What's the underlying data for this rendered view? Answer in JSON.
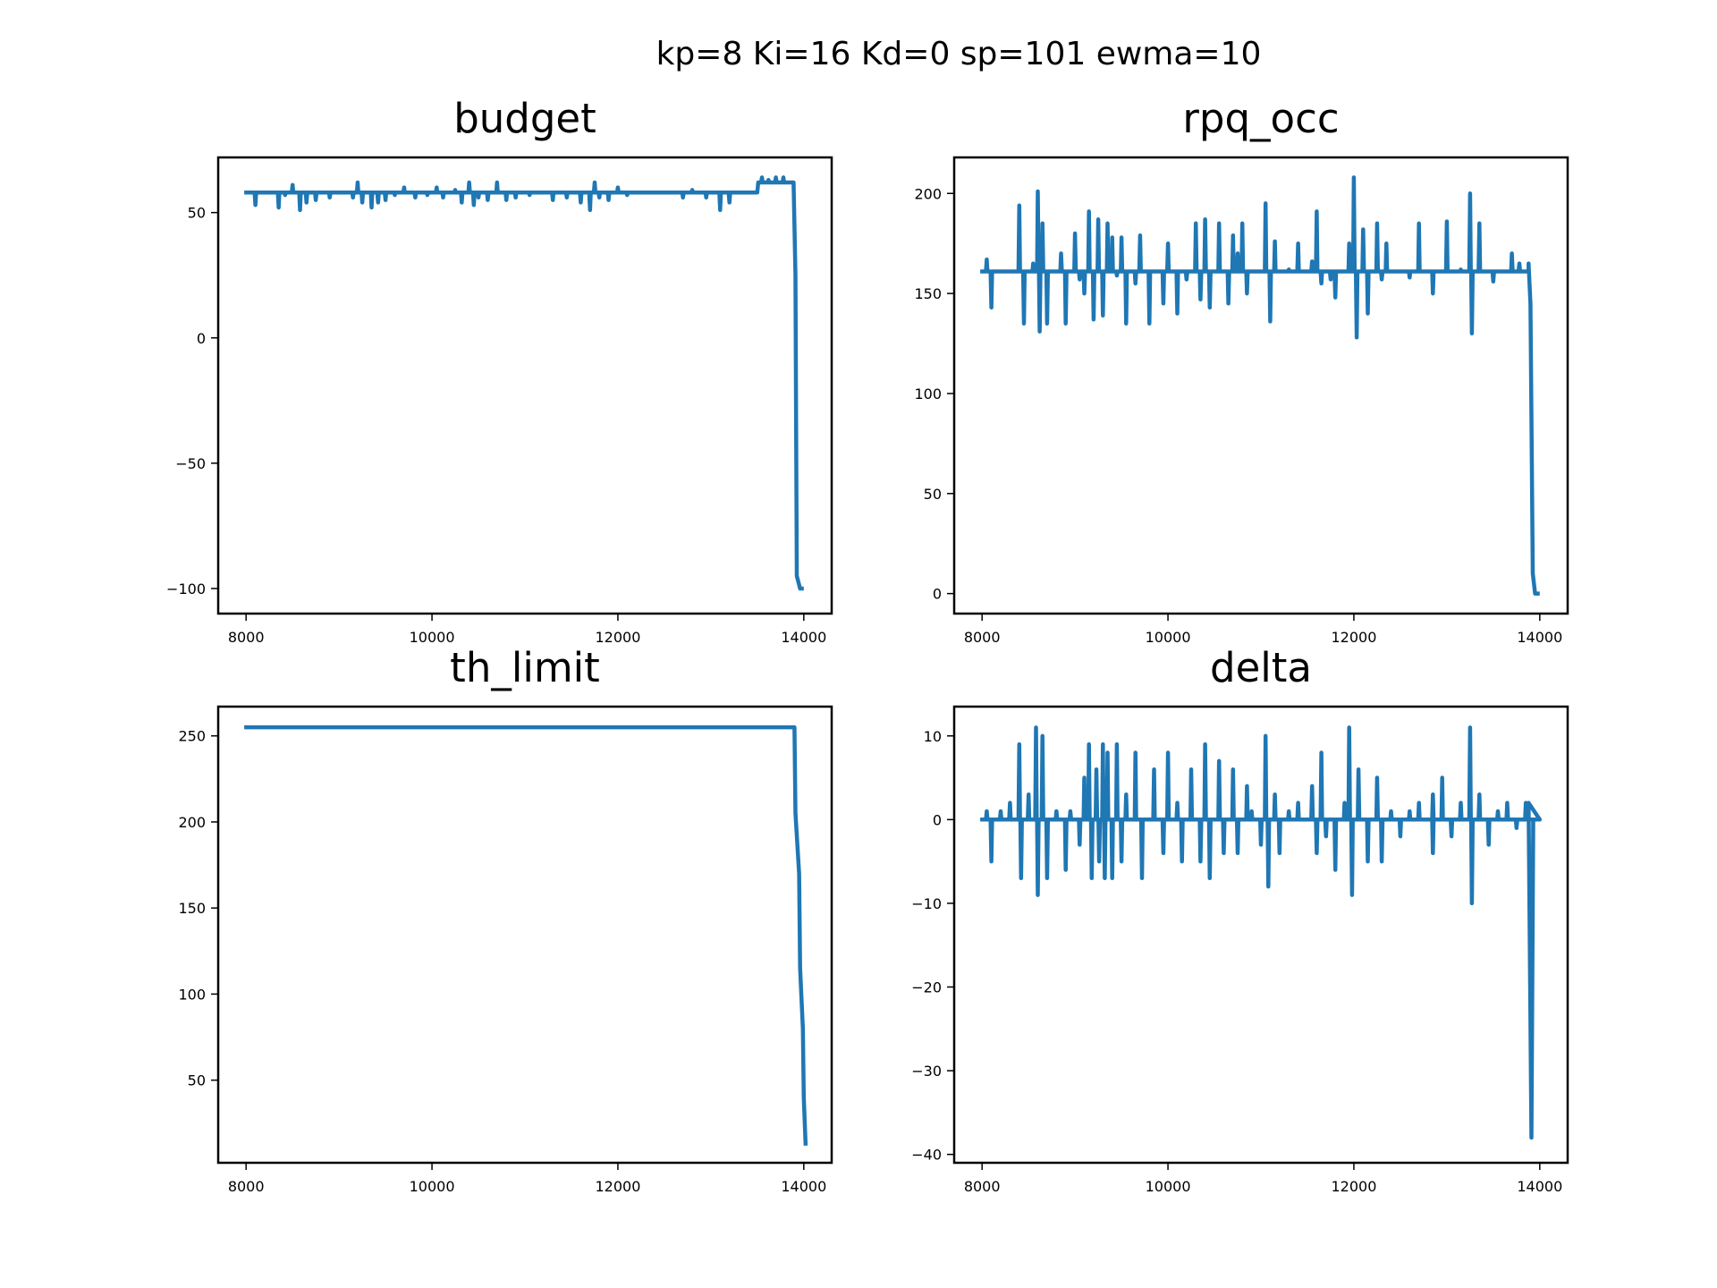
{
  "figure": {
    "suptitle": "kp=8 Ki=16 Kd=0 sp=101 ewma=10"
  },
  "colors": {
    "series": "#1f77b4"
  },
  "chart_data": [
    {
      "id": "budget",
      "type": "line",
      "title": "budget",
      "xlabel": "",
      "ylabel": "",
      "xlim": [
        7700,
        14300
      ],
      "ylim": [
        -110,
        72
      ],
      "xticks": [
        8000,
        10000,
        12000,
        14000
      ],
      "xtick_labels": [
        "8000",
        "10000",
        "12000",
        "14000"
      ],
      "yticks": [
        50,
        0,
        -50,
        -100
      ],
      "ytick_labels": [
        "50",
        "0",
        "−50",
        "−100"
      ],
      "baseline": 58,
      "baseline_end": 13500,
      "spikes": [
        [
          8100,
          53
        ],
        [
          8350,
          52
        ],
        [
          8420,
          57
        ],
        [
          8500,
          61
        ],
        [
          8580,
          51
        ],
        [
          8650,
          54
        ],
        [
          8750,
          55
        ],
        [
          8900,
          56
        ],
        [
          9000,
          58
        ],
        [
          9150,
          56
        ],
        [
          9200,
          62
        ],
        [
          9250,
          54
        ],
        [
          9350,
          52
        ],
        [
          9420,
          54
        ],
        [
          9500,
          55
        ],
        [
          9600,
          57
        ],
        [
          9700,
          60
        ],
        [
          9820,
          56
        ],
        [
          9950,
          57
        ],
        [
          10050,
          60
        ],
        [
          10120,
          56
        ],
        [
          10250,
          59
        ],
        [
          10320,
          54
        ],
        [
          10400,
          62
        ],
        [
          10450,
          53
        ],
        [
          10500,
          56
        ],
        [
          10600,
          55
        ],
        [
          10700,
          62
        ],
        [
          10800,
          55
        ],
        [
          10900,
          56
        ],
        [
          11050,
          57
        ],
        [
          11150,
          58
        ],
        [
          11300,
          55
        ],
        [
          11450,
          56
        ],
        [
          11600,
          54
        ],
        [
          11700,
          51
        ],
        [
          11750,
          62
        ],
        [
          11800,
          56
        ],
        [
          11900,
          55
        ],
        [
          12000,
          60
        ],
        [
          12100,
          57
        ],
        [
          12300,
          58
        ],
        [
          12500,
          58
        ],
        [
          12700,
          56
        ],
        [
          12800,
          59
        ],
        [
          12950,
          56
        ],
        [
          13100,
          51
        ],
        [
          13200,
          54
        ],
        [
          13300,
          58
        ]
      ],
      "plateau": 62,
      "plateau_spikes": [
        [
          13550,
          64
        ],
        [
          13620,
          63
        ],
        [
          13700,
          64
        ],
        [
          13780,
          64
        ]
      ],
      "drop": [
        [
          13890,
          62
        ],
        [
          13910,
          25
        ],
        [
          13925,
          -95
        ],
        [
          13960,
          -100
        ],
        [
          14000,
          -100
        ]
      ]
    },
    {
      "id": "rpq_occ",
      "type": "line",
      "title": "rpq_occ",
      "xlabel": "",
      "ylabel": "",
      "xlim": [
        7700,
        14300
      ],
      "ylim": [
        -10,
        218
      ],
      "xticks": [
        8000,
        10000,
        12000,
        14000
      ],
      "xtick_labels": [
        "8000",
        "10000",
        "12000",
        "14000"
      ],
      "yticks": [
        200,
        150,
        100,
        50,
        0
      ],
      "ytick_labels": [
        "200",
        "150",
        "100",
        "50",
        "0"
      ],
      "baseline": 161,
      "baseline_end": 13880,
      "spikes": [
        [
          8050,
          167
        ],
        [
          8100,
          143
        ],
        [
          8400,
          194
        ],
        [
          8450,
          135
        ],
        [
          8550,
          165
        ],
        [
          8600,
          201
        ],
        [
          8620,
          131
        ],
        [
          8650,
          185
        ],
        [
          8700,
          135
        ],
        [
          8850,
          170
        ],
        [
          8900,
          135
        ],
        [
          9000,
          180
        ],
        [
          9050,
          157
        ],
        [
          9100,
          150
        ],
        [
          9150,
          191
        ],
        [
          9200,
          137
        ],
        [
          9250,
          187
        ],
        [
          9300,
          139
        ],
        [
          9350,
          185
        ],
        [
          9400,
          178
        ],
        [
          9450,
          159
        ],
        [
          9500,
          178
        ],
        [
          9550,
          135
        ],
        [
          9650,
          155
        ],
        [
          9700,
          179
        ],
        [
          9800,
          135
        ],
        [
          9950,
          145
        ],
        [
          10000,
          175
        ],
        [
          10100,
          140
        ],
        [
          10200,
          157
        ],
        [
          10300,
          185
        ],
        [
          10350,
          147
        ],
        [
          10400,
          187
        ],
        [
          10450,
          143
        ],
        [
          10550,
          185
        ],
        [
          10650,
          145
        ],
        [
          10700,
          179
        ],
        [
          10750,
          170
        ],
        [
          10800,
          185
        ],
        [
          10850,
          150
        ],
        [
          11050,
          195
        ],
        [
          11100,
          136
        ],
        [
          11150,
          176
        ],
        [
          11300,
          162
        ],
        [
          11400,
          175
        ],
        [
          11550,
          166
        ],
        [
          11600,
          191
        ],
        [
          11650,
          155
        ],
        [
          11750,
          157
        ],
        [
          11800,
          148
        ],
        [
          11950,
          175
        ],
        [
          12000,
          208
        ],
        [
          12030,
          128
        ],
        [
          12100,
          182
        ],
        [
          12150,
          140
        ],
        [
          12250,
          185
        ],
        [
          12300,
          157
        ],
        [
          12350,
          175
        ],
        [
          12600,
          158
        ],
        [
          12700,
          185
        ],
        [
          12850,
          150
        ],
        [
          13000,
          186
        ],
        [
          13150,
          162
        ],
        [
          13250,
          200
        ],
        [
          13270,
          130
        ],
        [
          13350,
          185
        ],
        [
          13500,
          156
        ],
        [
          13700,
          170
        ],
        [
          13780,
          165
        ]
      ],
      "drop": [
        [
          13880,
          165
        ],
        [
          13900,
          145
        ],
        [
          13925,
          10
        ],
        [
          13950,
          0
        ],
        [
          14000,
          0
        ]
      ]
    },
    {
      "id": "th_limit",
      "type": "line",
      "title": "th_limit",
      "xlabel": "",
      "ylabel": "",
      "xlim": [
        7700,
        14300
      ],
      "ylim": [
        2,
        267
      ],
      "xticks": [
        8000,
        10000,
        12000,
        14000
      ],
      "xtick_labels": [
        "8000",
        "10000",
        "12000",
        "14000"
      ],
      "yticks": [
        250,
        200,
        150,
        100,
        50
      ],
      "ytick_labels": [
        "250",
        "200",
        "150",
        "100",
        "50"
      ],
      "points": [
        [
          7980,
          255
        ],
        [
          13900,
          255
        ],
        [
          13910,
          205
        ],
        [
          13950,
          170
        ],
        [
          13960,
          115
        ],
        [
          13990,
          80
        ],
        [
          14000,
          40
        ],
        [
          14020,
          12
        ]
      ]
    },
    {
      "id": "delta",
      "type": "line",
      "title": "delta",
      "xlabel": "",
      "ylabel": "",
      "xlim": [
        7700,
        14300
      ],
      "ylim": [
        -41,
        13.5
      ],
      "xticks": [
        8000,
        10000,
        12000,
        14000
      ],
      "xtick_labels": [
        "8000",
        "10000",
        "12000",
        "14000"
      ],
      "yticks": [
        10,
        0,
        -10,
        -20,
        -30,
        -40
      ],
      "ytick_labels": [
        "10",
        "0",
        "−10",
        "−20",
        "−30",
        "−40"
      ],
      "baseline": 0,
      "baseline_end": 14000,
      "spikes": [
        [
          8050,
          1
        ],
        [
          8100,
          -5
        ],
        [
          8200,
          1
        ],
        [
          8300,
          2
        ],
        [
          8400,
          9
        ],
        [
          8420,
          -7
        ],
        [
          8500,
          3
        ],
        [
          8580,
          11
        ],
        [
          8600,
          -9
        ],
        [
          8650,
          10
        ],
        [
          8700,
          -7
        ],
        [
          8800,
          1
        ],
        [
          8900,
          -6
        ],
        [
          8950,
          1
        ],
        [
          9050,
          -3
        ],
        [
          9100,
          5
        ],
        [
          9150,
          9
        ],
        [
          9180,
          -7
        ],
        [
          9230,
          6
        ],
        [
          9260,
          -5
        ],
        [
          9300,
          9
        ],
        [
          9320,
          -7
        ],
        [
          9350,
          8
        ],
        [
          9400,
          -7
        ],
        [
          9450,
          9
        ],
        [
          9500,
          -5
        ],
        [
          9550,
          3
        ],
        [
          9650,
          8
        ],
        [
          9720,
          -7
        ],
        [
          9850,
          6
        ],
        [
          9950,
          -4
        ],
        [
          10000,
          8
        ],
        [
          10100,
          2
        ],
        [
          10150,
          -5
        ],
        [
          10250,
          6
        ],
        [
          10350,
          -5
        ],
        [
          10400,
          9
        ],
        [
          10450,
          -7
        ],
        [
          10550,
          7
        ],
        [
          10600,
          -4
        ],
        [
          10700,
          6
        ],
        [
          10750,
          -4
        ],
        [
          10850,
          4
        ],
        [
          10900,
          1
        ],
        [
          11000,
          -3
        ],
        [
          11050,
          10
        ],
        [
          11080,
          -8
        ],
        [
          11150,
          3
        ],
        [
          11200,
          -4
        ],
        [
          11300,
          1
        ],
        [
          11400,
          2
        ],
        [
          11550,
          4
        ],
        [
          11600,
          -4
        ],
        [
          11650,
          8
        ],
        [
          11700,
          -2
        ],
        [
          11800,
          -6
        ],
        [
          11900,
          2
        ],
        [
          11950,
          11
        ],
        [
          11980,
          -9
        ],
        [
          12050,
          6
        ],
        [
          12150,
          -5
        ],
        [
          12250,
          5
        ],
        [
          12300,
          -5
        ],
        [
          12400,
          1
        ],
        [
          12500,
          -2
        ],
        [
          12600,
          1
        ],
        [
          12700,
          2
        ],
        [
          12850,
          3
        ],
        [
          12850,
          -4
        ],
        [
          12950,
          5
        ],
        [
          13050,
          -2
        ],
        [
          13150,
          2
        ],
        [
          13250,
          11
        ],
        [
          13270,
          -10
        ],
        [
          13350,
          3
        ],
        [
          13450,
          -3
        ],
        [
          13550,
          1
        ],
        [
          13650,
          2
        ],
        [
          13750,
          -1
        ],
        [
          13850,
          2
        ]
      ],
      "drop": [
        [
          13880,
          2
        ],
        [
          13910,
          -38
        ],
        [
          13930,
          0
        ],
        [
          14000,
          0
        ]
      ]
    }
  ]
}
